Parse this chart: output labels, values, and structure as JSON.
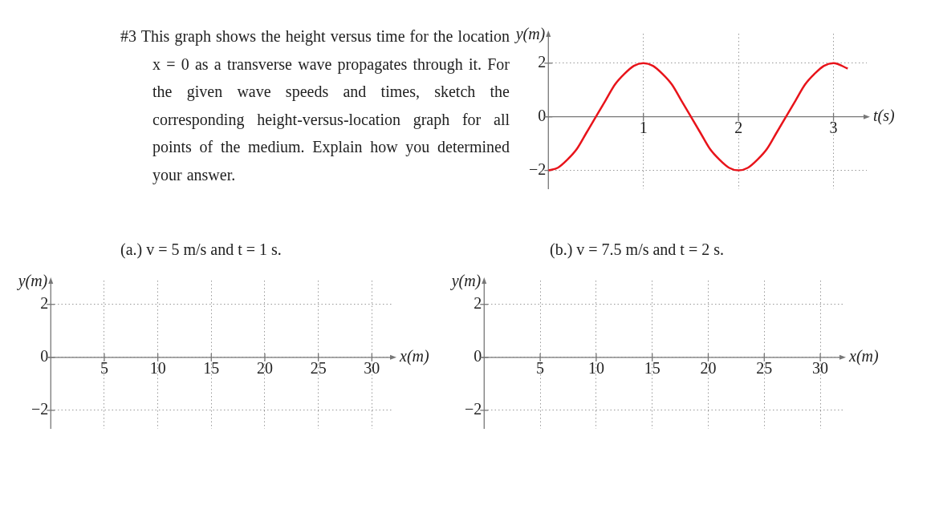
{
  "chart_data": [
    {
      "type": "line",
      "xlabel": "t(s)",
      "ylabel": "y(m)",
      "annotations": [
        "#3 This graph shows the height versus time for the location x = 0 as a transverse wave propagates through it. For the given wave speeds and times, sketch the corresponding height-versus-location graph for all points of the medium. Explain how you determined your answer."
      ],
      "x": [
        0,
        0.1,
        0.2,
        0.3,
        0.4,
        0.5,
        0.6,
        0.7,
        0.8,
        0.9,
        1,
        1.1,
        1.2,
        1.3,
        1.4,
        1.5,
        1.6,
        1.7,
        1.8,
        1.9,
        2,
        2.1,
        2.2,
        2.3,
        2.4,
        2.5,
        2.6,
        2.7,
        2.8,
        2.9,
        3,
        3.15
      ],
      "values": [
        -2,
        -1.9,
        -1.6,
        -1.2,
        -0.6,
        0,
        0.6,
        1.2,
        1.6,
        1.9,
        2,
        1.9,
        1.6,
        1.2,
        0.6,
        0,
        -0.6,
        -1.2,
        -1.6,
        -1.9,
        -2,
        -1.9,
        -1.6,
        -1.2,
        -0.6,
        0,
        0.6,
        1.2,
        1.6,
        1.9,
        2,
        1.8
      ],
      "color": "#e8141b",
      "marker": "none",
      "xlim": [
        0,
        3.35
      ],
      "ylim": [
        -2.7,
        3.1
      ],
      "xticks": [
        1,
        2,
        3
      ],
      "yticks": [
        -2,
        0,
        2
      ],
      "grid": true
    },
    {
      "type": "line",
      "title": "(a.) v = 5 m/s and t = 1 s.",
      "xlabel": "x(m)",
      "ylabel": "y(m)",
      "xlim": [
        0,
        32
      ],
      "ylim": [
        -2.7,
        2.9
      ],
      "xticks": [
        5,
        10,
        15,
        20,
        25,
        30
      ],
      "yticks": [
        -2,
        0,
        2
      ],
      "grid": true
    },
    {
      "type": "line",
      "title": "(b.) v = 7.5 m/s and t = 2 s.",
      "xlabel": "x(m)",
      "ylabel": "y(m)",
      "xlim": [
        0,
        32
      ],
      "ylim": [
        -2.7,
        2.9
      ],
      "xticks": [
        5,
        10,
        15,
        20,
        25,
        30
      ],
      "yticks": [
        -2,
        0,
        2
      ],
      "grid": true
    }
  ]
}
